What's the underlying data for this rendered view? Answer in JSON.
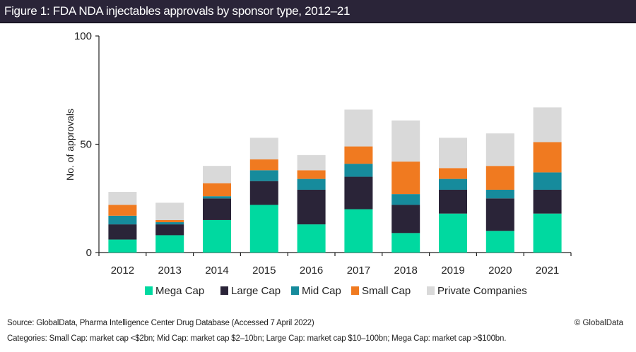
{
  "header": {
    "title": "Figure 1: FDA NDA injectables approvals by sponsor type, 2012–21"
  },
  "chart_data": {
    "type": "bar",
    "stacked": true,
    "title": "Figure 1: FDA NDA injectables approvals by sponsor type, 2012–21",
    "xlabel": "",
    "ylabel": "No. of approvals",
    "ylim": [
      0,
      100
    ],
    "yticks": [
      0,
      50,
      100
    ],
    "grid": false,
    "legend_position": "bottom",
    "categories": [
      "2012",
      "2013",
      "2014",
      "2015",
      "2016",
      "2017",
      "2018",
      "2019",
      "2020",
      "2021"
    ],
    "series": [
      {
        "name": "Mega Cap",
        "color": "#00d9a0",
        "values": [
          6,
          8,
          15,
          22,
          13,
          20,
          9,
          18,
          10,
          18
        ]
      },
      {
        "name": "Large Cap",
        "color": "#2a2438",
        "values": [
          7,
          5,
          10,
          11,
          16,
          15,
          13,
          11,
          15,
          11
        ]
      },
      {
        "name": "Mid Cap",
        "color": "#168b9c",
        "values": [
          4,
          1,
          1,
          5,
          5,
          6,
          5,
          5,
          4,
          8
        ]
      },
      {
        "name": "Small Cap",
        "color": "#f07a20",
        "values": [
          5,
          1,
          6,
          5,
          4,
          8,
          15,
          5,
          11,
          14
        ]
      },
      {
        "name": "Private Companies",
        "color": "#d9d9d9",
        "values": [
          6,
          8,
          8,
          10,
          7,
          17,
          19,
          14,
          15,
          16
        ]
      }
    ]
  },
  "footer": {
    "source": "Source: GlobalData, Pharma Intelligence Center Drug Database (Accessed 7 April 2022)",
    "categories_note": "Categories: Small Cap: market cap <$2bn; Mid Cap: market cap $2–10bn; Large Cap: market cap $10–100bn; Mega Cap: market cap >$100bn.",
    "copyright": "© GlobalData"
  }
}
